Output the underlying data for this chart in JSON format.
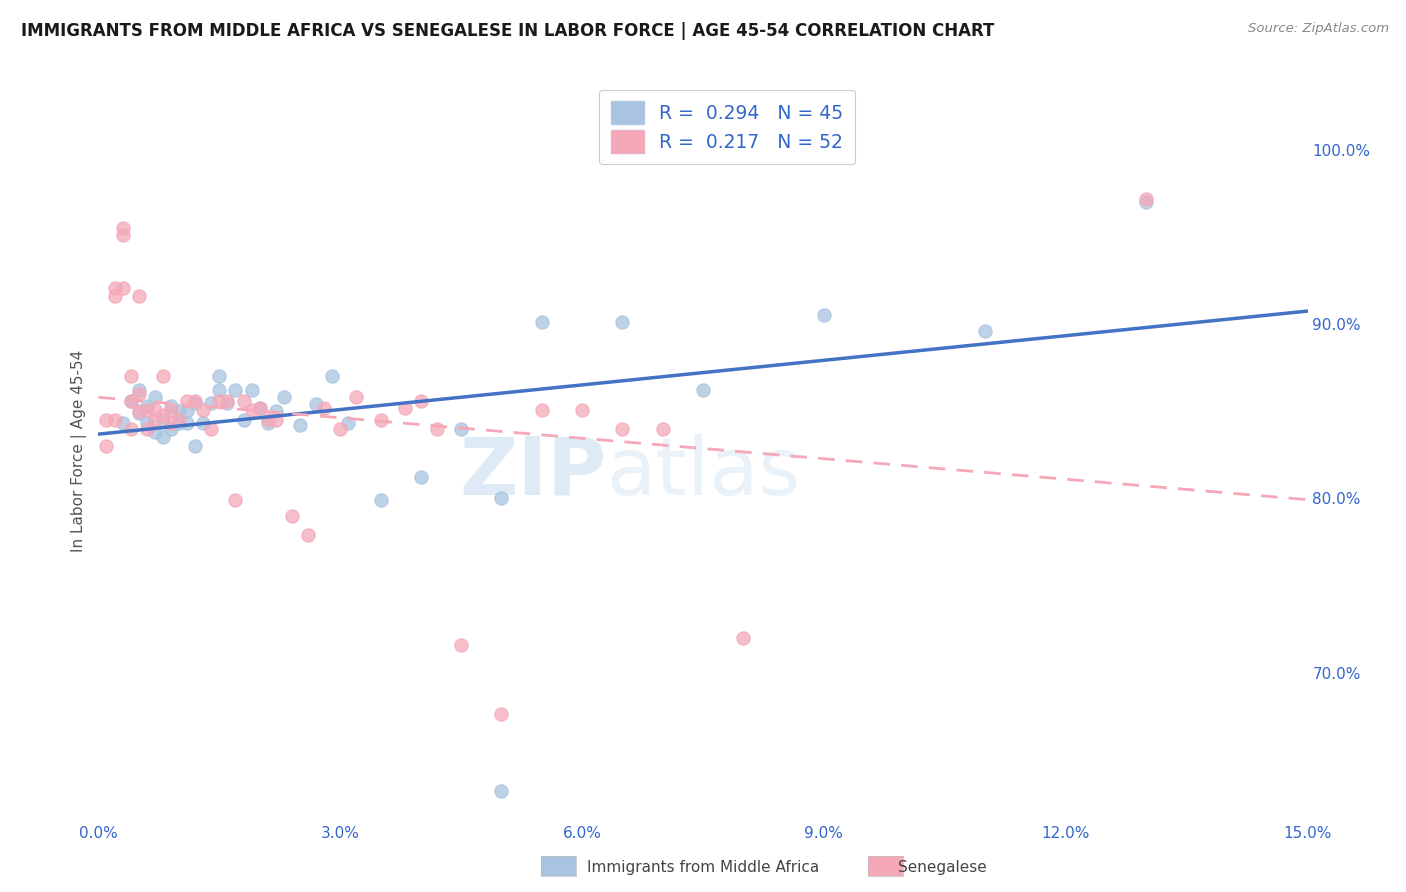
{
  "title": "IMMIGRANTS FROM MIDDLE AFRICA VS SENEGALESE IN LABOR FORCE | AGE 45-54 CORRELATION CHART",
  "source": "Source: ZipAtlas.com",
  "ylabel": "In Labor Force | Age 45-54",
  "xlim": [
    0.0,
    0.15
  ],
  "ylim": [
    0.615,
    1.04
  ],
  "xticks": [
    0.0,
    0.03,
    0.06,
    0.09,
    0.12,
    0.15
  ],
  "xticklabels": [
    "0.0%",
    "3.0%",
    "6.0%",
    "9.0%",
    "12.0%",
    "15.0%"
  ],
  "yticks_right": [
    0.7,
    0.8,
    0.9,
    1.0
  ],
  "ytickslabels_right": [
    "70.0%",
    "80.0%",
    "90.0%",
    "100.0%"
  ],
  "blue_color": "#a8c4e0",
  "pink_color": "#f4a8b8",
  "trend_blue_color": "#4472c4",
  "trend_pink_color": "#f4a8b8",
  "legend_R1": "0.294",
  "legend_N1": "45",
  "legend_R2": "0.217",
  "legend_N2": "52",
  "blue_x": [
    0.003,
    0.004,
    0.005,
    0.005,
    0.006,
    0.006,
    0.007,
    0.007,
    0.008,
    0.008,
    0.009,
    0.009,
    0.01,
    0.01,
    0.011,
    0.011,
    0.012,
    0.012,
    0.013,
    0.014,
    0.015,
    0.015,
    0.016,
    0.017,
    0.018,
    0.019,
    0.02,
    0.021,
    0.022,
    0.023,
    0.025,
    0.027,
    0.029,
    0.031,
    0.035,
    0.04,
    0.045,
    0.05,
    0.055,
    0.065,
    0.075,
    0.09,
    0.11,
    0.13,
    0.05
  ],
  "blue_y": [
    0.843,
    0.856,
    0.862,
    0.849,
    0.853,
    0.843,
    0.858,
    0.838,
    0.845,
    0.835,
    0.84,
    0.853,
    0.85,
    0.843,
    0.85,
    0.843,
    0.855,
    0.83,
    0.843,
    0.855,
    0.862,
    0.87,
    0.855,
    0.862,
    0.845,
    0.862,
    0.852,
    0.843,
    0.85,
    0.858,
    0.842,
    0.854,
    0.87,
    0.843,
    0.799,
    0.812,
    0.84,
    0.8,
    0.901,
    0.901,
    0.862,
    0.905,
    0.896,
    0.97,
    0.632
  ],
  "pink_x": [
    0.001,
    0.001,
    0.002,
    0.002,
    0.002,
    0.003,
    0.003,
    0.003,
    0.004,
    0.004,
    0.004,
    0.005,
    0.005,
    0.005,
    0.006,
    0.006,
    0.007,
    0.007,
    0.008,
    0.008,
    0.009,
    0.009,
    0.01,
    0.011,
    0.012,
    0.013,
    0.014,
    0.015,
    0.016,
    0.017,
    0.018,
    0.019,
    0.02,
    0.021,
    0.022,
    0.024,
    0.026,
    0.028,
    0.03,
    0.032,
    0.035,
    0.038,
    0.04,
    0.042,
    0.045,
    0.05,
    0.055,
    0.06,
    0.065,
    0.07,
    0.08,
    0.13
  ],
  "pink_y": [
    0.845,
    0.83,
    0.921,
    0.916,
    0.845,
    0.951,
    0.955,
    0.921,
    0.87,
    0.856,
    0.84,
    0.916,
    0.86,
    0.85,
    0.851,
    0.84,
    0.851,
    0.845,
    0.87,
    0.848,
    0.851,
    0.843,
    0.845,
    0.856,
    0.856,
    0.851,
    0.84,
    0.856,
    0.856,
    0.799,
    0.856,
    0.851,
    0.852,
    0.845,
    0.845,
    0.79,
    0.779,
    0.852,
    0.84,
    0.858,
    0.845,
    0.852,
    0.856,
    0.84,
    0.716,
    0.676,
    0.851,
    0.851,
    0.84,
    0.84,
    0.72,
    0.972
  ],
  "watermark_zip": "ZIP",
  "watermark_atlas": "atlas",
  "background_color": "#ffffff",
  "grid_color": "#e0e0e0",
  "legend_label_blue": "Immigrants from Middle Africa",
  "legend_label_pink": "Senegalese"
}
